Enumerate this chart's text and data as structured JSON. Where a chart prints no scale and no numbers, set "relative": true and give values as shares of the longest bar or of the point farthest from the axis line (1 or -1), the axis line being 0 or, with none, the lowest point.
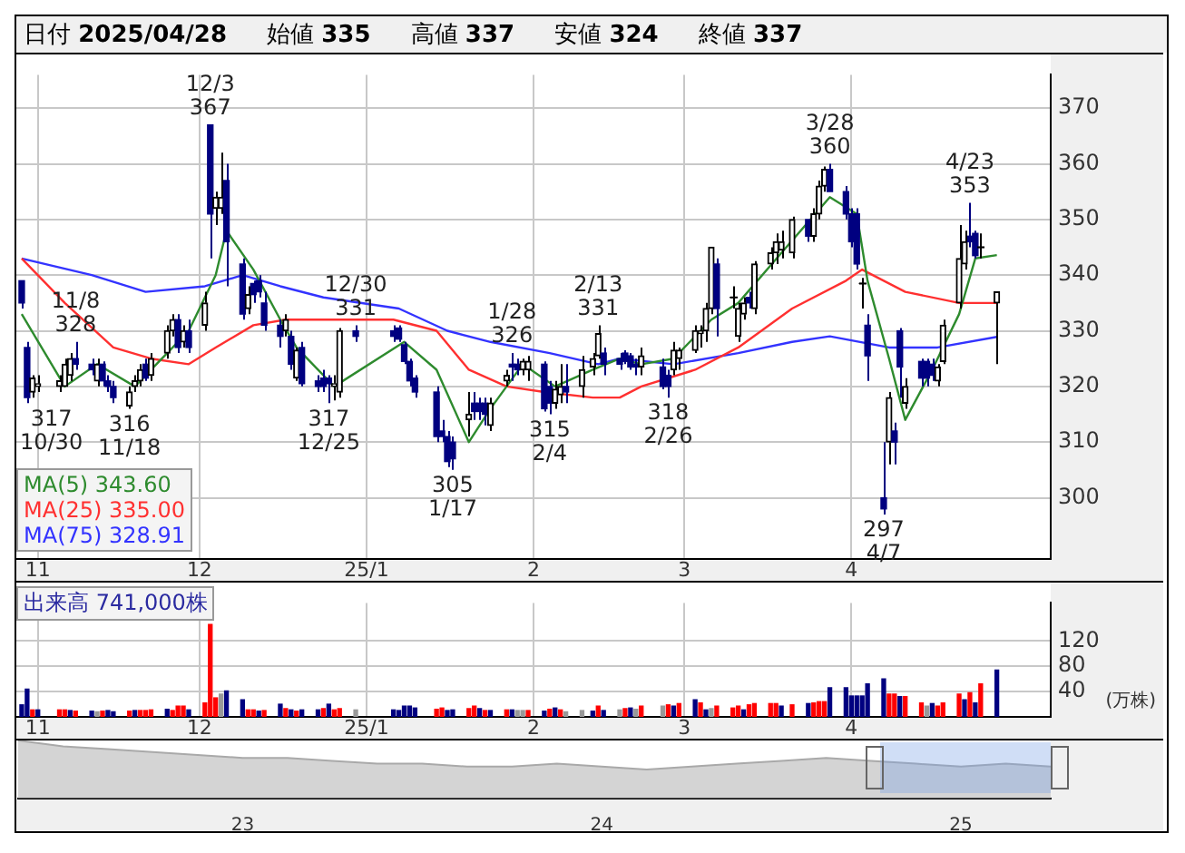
{
  "chart_data": [
    {
      "type": "candlestick",
      "grid": true,
      "legend": "bottom left",
      "colors": [
        "#000080",
        "#000080",
        "#000000",
        "#000000",
        "#000000",
        "#000000",
        "#000000",
        "#000080",
        "#000080",
        "#000000",
        "#000080",
        "#000080",
        "#000080",
        "#000000",
        "#000000",
        "#000000",
        "#000080",
        "#000000",
        "#000000",
        "#000000",
        "#000080",
        "#000000",
        "#000080",
        "#000000",
        "#000080",
        "#000000",
        "#000000",
        "#000080",
        "#000080",
        "#000000",
        "#000080",
        "#000080",
        "#000080",
        "#000080",
        "#000000",
        "#000080",
        "#000000",
        "#000080",
        "#000080",
        "#000080",
        "#000080",
        "#000000",
        "#000000",
        "#000080",
        "#000080",
        "#000080",
        "#000080",
        "#000080",
        "#000080",
        "#000080",
        "#000080",
        "#000080",
        "#000080",
        "#000000",
        "#000080",
        "#000080",
        "#000080",
        "#000000",
        "#000000",
        "#000080",
        "#000080",
        "#000000",
        "#000000",
        "#000080",
        "#000080",
        "#000000",
        "#000000",
        "#000080",
        "#000000",
        "#000000",
        "#000000",
        "#000080",
        "#000080",
        "#000080",
        "#000080",
        "#000080",
        "#000000",
        "#000080",
        "#000080",
        "#000000",
        "#000000",
        "#000000",
        "#000000",
        "#000000",
        "#000000",
        "#000080",
        "#000000",
        "#000000",
        "#000000",
        "#000080",
        "#000000",
        "#000000",
        "#000000",
        "#000000",
        "#000000",
        "#000080",
        "#000000",
        "#000000",
        "#000000",
        "#000080",
        "#000080",
        "#000080",
        "#000080",
        "#000000",
        "#000080",
        "#000080",
        "#000000",
        "#000080",
        "#000080",
        "#000000",
        "#000080",
        "#000080",
        "#000080",
        "#000000",
        "#000000",
        "#000000",
        "#000000",
        "#000080",
        "#000080",
        "#000000",
        "#000000"
      ],
      "annotations": [
        "日付 2025/04/28",
        "始値 335",
        "高値 337",
        "安値 324",
        "終値 337",
        {
          "text": "12/3\n367",
          "x": "2024-12-03",
          "y": 367
        },
        {
          "text": "11/8\n328",
          "x": "2024-11-08",
          "y": 328
        },
        {
          "text": "317\n10/30",
          "x": "2024-10-30",
          "y": 317
        },
        {
          "text": "316\n11/18",
          "x": "2024-11-18",
          "y": 316
        },
        {
          "text": "12/30\n331",
          "x": "2024-12-30",
          "y": 331
        },
        {
          "text": "317\n12/25",
          "x": "2024-12-25",
          "y": 317
        },
        {
          "text": "305\n1/17",
          "x": "2025-01-17",
          "y": 305
        },
        {
          "text": "1/28\n326",
          "x": "2025-01-28",
          "y": 326
        },
        {
          "text": "315\n2/4",
          "x": "2025-02-04",
          "y": 315
        },
        {
          "text": "2/13\n331",
          "x": "2025-02-13",
          "y": 331
        },
        {
          "text": "318\n2/26",
          "x": "2025-02-26",
          "y": 318
        },
        {
          "text": "3/28\n360",
          "x": "2025-03-28",
          "y": 360
        },
        {
          "text": "297\n4/7",
          "x": "2025-04-07",
          "y": 297
        },
        {
          "text": "4/23\n353",
          "x": "2025-04-23",
          "y": 353
        }
      ],
      "xlim": [
        "2024-10-28",
        "2025-05-08"
      ],
      "x": [
        "2024-10-29",
        "2024-10-30",
        "2024-10-31",
        "2024-11-01",
        "2024-11-05",
        "2024-11-06",
        "2024-11-07",
        "2024-11-08",
        "2024-11-11",
        "2024-11-12",
        "2024-11-13",
        "2024-11-14",
        "2024-11-15",
        "2024-11-18",
        "2024-11-19",
        "2024-11-20",
        "2024-11-21",
        "2024-11-22",
        "2024-11-25",
        "2024-11-26",
        "2024-11-27",
        "2024-11-28",
        "2024-11-29",
        "2024-12-02",
        "2024-12-03",
        "2024-12-04",
        "2024-12-05",
        "2024-12-06",
        "2024-12-09",
        "2024-12-10",
        "2024-12-11",
        "2024-12-12",
        "2024-12-13",
        "2024-12-16",
        "2024-12-17",
        "2024-12-18",
        "2024-12-19",
        "2024-12-20",
        "2024-12-23",
        "2024-12-24",
        "2024-12-25",
        "2024-12-26",
        "2024-12-27",
        "2024-12-30",
        "2025-01-06",
        "2025-01-07",
        "2025-01-08",
        "2025-01-09",
        "2025-01-10",
        "2025-01-14",
        "2025-01-15",
        "2025-01-16",
        "2025-01-17",
        "2025-01-20",
        "2025-01-21",
        "2025-01-22",
        "2025-01-23",
        "2025-01-24",
        "2025-01-27",
        "2025-01-28",
        "2025-01-29",
        "2025-01-30",
        "2025-01-31",
        "2025-02-03",
        "2025-02-04",
        "2025-02-05",
        "2025-02-06",
        "2025-02-07",
        "2025-02-10",
        "2025-02-12",
        "2025-02-13",
        "2025-02-14",
        "2025-02-17",
        "2025-02-18",
        "2025-02-19",
        "2025-02-20",
        "2025-02-21",
        "2025-02-25",
        "2025-02-26",
        "2025-02-27",
        "2025-02-28",
        "2025-03-03",
        "2025-03-04",
        "2025-03-05",
        "2025-03-06",
        "2025-03-07",
        "2025-03-10",
        "2025-03-11",
        "2025-03-12",
        "2025-03-13",
        "2025-03-14",
        "2025-03-17",
        "2025-03-18",
        "2025-03-19",
        "2025-03-21",
        "2025-03-24",
        "2025-03-25",
        "2025-03-26",
        "2025-03-27",
        "2025-03-28",
        "2025-03-31",
        "2025-04-01",
        "2025-04-02",
        "2025-04-03",
        "2025-04-04",
        "2025-04-07",
        "2025-04-08",
        "2025-04-09",
        "2025-04-10",
        "2025-04-11",
        "2025-04-14",
        "2025-04-15",
        "2025-04-16",
        "2025-04-17",
        "2025-04-18",
        "2025-04-21",
        "2025-04-22",
        "2025-04-23",
        "2025-04-24",
        "2025-04-25",
        "2025-04-28"
      ],
      "ohlc": [
        [
          339,
          339,
          334,
          335
        ],
        [
          327,
          328,
          317,
          318
        ],
        [
          319,
          322,
          318,
          321.5
        ],
        [
          320,
          322,
          319,
          320.5
        ],
        [
          320,
          322,
          319,
          321
        ],
        [
          320,
          325,
          320,
          324
        ],
        [
          322,
          326,
          321,
          325
        ],
        [
          325,
          328,
          323,
          324
        ],
        [
          324,
          325,
          322,
          323
        ],
        [
          321,
          325,
          320,
          324
        ],
        [
          324,
          324.5,
          320,
          321
        ],
        [
          321,
          322,
          319,
          320
        ],
        [
          320,
          321,
          317,
          318
        ],
        [
          316.5,
          320,
          316,
          319
        ],
        [
          320,
          322,
          319,
          321
        ],
        [
          321,
          324,
          320,
          323
        ],
        [
          324,
          325,
          321,
          321.5
        ],
        [
          322,
          326,
          321,
          325
        ],
        [
          326,
          331,
          325,
          330
        ],
        [
          330,
          333,
          329,
          332
        ],
        [
          332,
          333,
          326,
          327
        ],
        [
          328,
          331,
          327,
          330
        ],
        [
          330,
          332,
          326,
          327
        ],
        [
          331,
          337,
          330,
          335
        ],
        [
          367,
          367,
          343,
          351
        ],
        [
          352,
          355,
          349,
          354
        ],
        [
          352,
          362,
          351,
          354
        ],
        [
          357,
          360,
          338,
          346
        ],
        [
          342,
          343,
          332,
          333
        ],
        [
          334,
          338,
          333,
          336.5
        ],
        [
          338.5,
          339,
          335,
          336.5
        ],
        [
          339,
          340,
          336,
          337
        ],
        [
          335,
          337,
          330,
          331
        ],
        [
          331,
          332,
          327,
          329
        ],
        [
          330,
          333,
          329,
          332
        ],
        [
          329,
          330,
          323,
          324
        ],
        [
          321.5,
          327,
          321,
          326.5
        ],
        [
          327,
          328,
          320,
          320.5
        ],
        [
          321,
          322,
          319,
          320
        ],
        [
          321.5,
          323,
          319,
          320
        ],
        [
          321.5,
          322,
          317,
          320.5
        ],
        [
          320,
          322,
          317.5,
          320.5
        ],
        [
          319,
          330.5,
          318,
          330
        ],
        [
          330,
          331,
          328,
          329
        ],
        [
          330,
          331,
          328,
          329
        ],
        [
          330.5,
          331,
          328,
          328.5
        ],
        [
          327.5,
          328,
          324,
          324.5
        ],
        [
          324.5,
          325,
          320,
          321
        ],
        [
          321.5,
          322,
          318,
          319
        ],
        [
          319,
          320,
          310,
          311
        ],
        [
          312,
          314,
          310,
          311
        ],
        [
          311,
          312,
          305.5,
          306.5
        ],
        [
          310,
          311,
          305,
          307
        ],
        [
          314,
          319,
          311,
          315
        ],
        [
          317,
          319,
          314,
          315.5
        ],
        [
          317,
          318,
          314,
          315.5
        ],
        [
          317,
          318,
          313,
          315
        ],
        [
          313,
          318,
          312,
          317
        ],
        [
          321,
          323,
          320,
          322
        ],
        [
          324,
          326,
          321,
          323.5
        ],
        [
          324,
          325,
          322,
          323
        ],
        [
          323,
          325,
          322,
          324.5
        ],
        [
          323,
          325.5,
          321,
          324.5
        ],
        [
          324,
          324.5,
          315.5,
          316
        ],
        [
          320,
          321,
          315,
          317
        ],
        [
          317,
          321,
          316,
          319.5
        ],
        [
          318.5,
          324,
          317,
          320
        ],
        [
          320,
          324,
          317,
          319
        ],
        [
          320,
          325.5,
          318,
          323
        ],
        [
          323.5,
          326,
          322,
          325
        ],
        [
          325.5,
          331,
          325,
          329.5
        ],
        [
          326,
          327,
          322,
          324
        ],
        [
          325,
          326,
          323,
          324
        ],
        [
          326,
          326.5,
          324,
          324.5
        ],
        [
          325.5,
          326,
          323,
          323.5
        ],
        [
          324,
          325,
          322,
          323.5
        ],
        [
          323.5,
          327,
          322,
          325.5
        ],
        [
          323.5,
          325,
          319.5,
          320
        ],
        [
          322,
          323,
          318,
          320
        ],
        [
          323,
          328,
          322,
          326.5
        ],
        [
          325,
          327,
          323,
          326.5
        ],
        [
          326.5,
          331,
          326,
          330
        ],
        [
          329.5,
          331,
          327,
          330
        ],
        [
          330,
          335,
          328,
          334
        ],
        [
          334,
          345,
          333,
          345
        ],
        [
          342,
          343,
          329,
          334
        ],
        [
          336,
          338,
          334,
          336
        ],
        [
          329,
          335,
          328,
          334
        ],
        [
          333,
          336,
          332,
          335
        ],
        [
          336,
          337,
          334,
          335
        ],
        [
          334,
          342.5,
          333,
          342
        ],
        [
          342,
          345,
          341,
          344
        ],
        [
          344,
          347.5,
          342,
          346
        ],
        [
          344.5,
          348,
          343,
          346
        ],
        [
          344,
          350.5,
          343,
          350
        ],
        [
          350,
          350,
          346,
          347
        ],
        [
          347,
          352,
          346,
          351
        ],
        [
          351,
          357,
          350,
          356
        ],
        [
          356,
          359.5,
          355,
          359
        ],
        [
          359,
          360,
          355,
          355
        ],
        [
          355,
          356,
          350,
          351
        ],
        [
          351,
          352,
          345,
          346
        ],
        [
          351,
          352,
          341,
          342
        ],
        [
          338.5,
          339.5,
          334,
          338.5
        ],
        [
          331,
          333,
          321,
          325.5
        ],
        [
          300,
          310,
          297,
          298
        ],
        [
          310,
          319,
          306,
          318
        ],
        [
          312,
          313.5,
          306,
          310
        ],
        [
          330,
          330.5,
          318,
          323.5
        ],
        [
          317,
          321.5,
          316,
          320
        ],
        [
          324.5,
          325,
          320,
          321.5
        ],
        [
          324.5,
          325,
          320,
          321.5
        ],
        [
          324,
          325,
          321,
          322
        ],
        [
          321,
          324,
          320,
          323.5
        ],
        [
          324.5,
          332,
          324,
          331
        ],
        [
          335,
          349,
          334,
          343
        ],
        [
          342,
          348,
          341,
          346
        ],
        [
          347,
          353,
          345,
          346
        ],
        [
          347.5,
          348,
          343,
          343.5
        ],
        [
          345,
          347.5,
          343,
          345
        ],
        [
          335,
          337,
          324,
          337
        ]
      ],
      "series": [
        {
          "name": "MA(5) 343.60",
          "type": "line",
          "color": "#2e8b2e",
          "x": [
            "2024-10-29",
            "2024-11-06",
            "2024-11-12",
            "2024-11-19",
            "2024-11-25",
            "2024-11-29",
            "2024-12-04",
            "2024-12-06",
            "2024-12-11",
            "2024-12-16",
            "2024-12-19",
            "2024-12-26",
            "2025-01-08",
            "2025-01-14",
            "2025-01-20",
            "2025-01-24",
            "2025-01-30",
            "2025-02-05",
            "2025-02-12",
            "2025-02-17",
            "2025-02-21",
            "2025-02-27",
            "2025-03-06",
            "2025-03-11",
            "2025-03-19",
            "2025-03-28",
            "2025-04-02",
            "2025-04-04",
            "2025-04-08",
            "2025-04-11",
            "2025-04-16",
            "2025-04-21",
            "2025-04-24",
            "2025-04-28"
          ],
          "values": [
            333,
            320,
            324,
            320,
            326,
            330,
            340,
            348,
            341,
            332,
            327,
            320,
            328,
            323,
            310,
            316,
            324,
            320,
            323,
            325,
            324,
            325,
            332,
            335,
            344,
            354,
            351,
            339,
            325,
            314,
            323,
            333,
            343,
            343.6
          ]
        },
        {
          "name": "MA(25) 335.00",
          "type": "line",
          "color": "#ff3030",
          "x": [
            "2024-10-29",
            "2024-11-06",
            "2024-11-15",
            "2024-11-22",
            "2024-11-29",
            "2024-12-04",
            "2024-12-11",
            "2024-12-17",
            "2024-12-24",
            "2025-01-06",
            "2025-01-14",
            "2025-01-20",
            "2025-01-27",
            "2025-02-03",
            "2025-02-12",
            "2025-02-17",
            "2025-02-21",
            "2025-03-03",
            "2025-03-11",
            "2025-03-21",
            "2025-03-31",
            "2025-04-03",
            "2025-04-11",
            "2025-04-21",
            "2025-04-28"
          ],
          "values": [
            343,
            335,
            327,
            325,
            324,
            327,
            331,
            332,
            332,
            332,
            330,
            323,
            320,
            319,
            318,
            318,
            320,
            323,
            327,
            334,
            339,
            341,
            337,
            335,
            335
          ]
        },
        {
          "name": "MA(75) 328.91",
          "type": "line",
          "color": "#3333ff",
          "x": [
            "2024-10-29",
            "2024-11-11",
            "2024-11-21",
            "2024-12-02",
            "2024-12-09",
            "2024-12-16",
            "2024-12-24",
            "2025-01-07",
            "2025-01-16",
            "2025-01-24",
            "2025-02-04",
            "2025-02-13",
            "2025-02-17",
            "2025-02-27",
            "2025-03-11",
            "2025-03-21",
            "2025-03-28",
            "2025-04-08",
            "2025-04-17",
            "2025-04-28"
          ],
          "values": [
            343,
            340,
            337,
            338,
            340,
            338,
            336,
            334,
            330,
            328,
            326,
            324,
            325,
            324,
            326,
            328,
            329,
            327,
            327,
            328.9
          ]
        }
      ],
      "xticks": [
        {
          "value": "2024-11-01",
          "label": "11"
        },
        {
          "value": "2024-12-01",
          "label": "12"
        },
        {
          "value": "2025-01-01",
          "label": "25/1"
        },
        {
          "value": "2025-02-01",
          "label": "2"
        },
        {
          "value": "2025-03-01",
          "label": "3"
        },
        {
          "value": "2025-04-01",
          "label": "4"
        }
      ],
      "ylim": [
        289,
        376
      ],
      "yticks": [
        300,
        310,
        320,
        330,
        340,
        350,
        360,
        370
      ]
    },
    {
      "type": "bar",
      "title": "出来高 741,000株",
      "ylabel": "(万株)",
      "grid": true,
      "x": [
        "2024-10-29",
        "2024-10-30",
        "2024-10-31",
        "2024-11-01",
        "2024-11-05",
        "2024-11-06",
        "2024-11-07",
        "2024-11-08",
        "2024-11-11",
        "2024-11-12",
        "2024-11-13",
        "2024-11-14",
        "2024-11-15",
        "2024-11-18",
        "2024-11-19",
        "2024-11-20",
        "2024-11-21",
        "2024-11-22",
        "2024-11-25",
        "2024-11-26",
        "2024-11-27",
        "2024-11-28",
        "2024-11-29",
        "2024-12-02",
        "2024-12-03",
        "2024-12-04",
        "2024-12-05",
        "2024-12-06",
        "2024-12-09",
        "2024-12-10",
        "2024-12-11",
        "2024-12-12",
        "2024-12-13",
        "2024-12-16",
        "2024-12-17",
        "2024-12-18",
        "2024-12-19",
        "2024-12-20",
        "2024-12-23",
        "2024-12-24",
        "2024-12-25",
        "2024-12-26",
        "2024-12-27",
        "2024-12-30",
        "2025-01-06",
        "2025-01-07",
        "2025-01-08",
        "2025-01-09",
        "2025-01-10",
        "2025-01-14",
        "2025-01-15",
        "2025-01-16",
        "2025-01-17",
        "2025-01-20",
        "2025-01-21",
        "2025-01-22",
        "2025-01-23",
        "2025-01-24",
        "2025-01-27",
        "2025-01-28",
        "2025-01-29",
        "2025-01-30",
        "2025-01-31",
        "2025-02-03",
        "2025-02-04",
        "2025-02-05",
        "2025-02-06",
        "2025-02-07",
        "2025-02-10",
        "2025-02-12",
        "2025-02-13",
        "2025-02-14",
        "2025-02-17",
        "2025-02-18",
        "2025-02-19",
        "2025-02-20",
        "2025-02-21",
        "2025-02-25",
        "2025-02-26",
        "2025-02-27",
        "2025-02-28",
        "2025-03-03",
        "2025-03-04",
        "2025-03-05",
        "2025-03-06",
        "2025-03-07",
        "2025-03-10",
        "2025-03-11",
        "2025-03-12",
        "2025-03-13",
        "2025-03-14",
        "2025-03-17",
        "2025-03-18",
        "2025-03-19",
        "2025-03-21",
        "2025-03-24",
        "2025-03-25",
        "2025-03-26",
        "2025-03-27",
        "2025-03-28",
        "2025-03-31",
        "2025-04-01",
        "2025-04-02",
        "2025-04-03",
        "2025-04-04",
        "2025-04-07",
        "2025-04-08",
        "2025-04-09",
        "2025-04-10",
        "2025-04-11",
        "2025-04-14",
        "2025-04-15",
        "2025-04-16",
        "2025-04-17",
        "2025-04-18",
        "2025-04-21",
        "2025-04-22",
        "2025-04-23",
        "2025-04-24",
        "2025-04-25",
        "2025-04-28"
      ],
      "values": [
        19,
        44,
        11,
        11,
        11,
        11,
        10,
        9,
        9,
        8,
        9,
        10,
        8,
        9,
        10,
        10,
        10,
        11,
        12,
        10,
        17,
        17,
        11,
        22,
        146,
        30,
        36,
        41,
        27,
        11,
        11,
        9,
        10,
        20,
        13,
        11,
        9,
        11,
        11,
        13,
        20,
        11,
        13,
        11,
        11,
        10,
        17,
        17,
        14,
        12,
        14,
        10,
        11,
        13,
        17,
        13,
        10,
        10,
        11,
        11,
        10,
        10,
        10,
        9,
        12,
        14,
        11,
        8,
        10,
        9,
        17,
        10,
        11,
        13,
        14,
        12,
        17,
        17,
        19,
        17,
        21,
        27,
        22,
        11,
        13,
        17,
        14,
        17,
        11,
        19,
        21,
        21,
        21,
        17,
        19,
        21,
        22,
        24,
        24,
        46,
        46,
        33,
        33,
        33,
        52,
        60,
        36,
        36,
        32,
        32,
        22,
        17,
        21,
        17,
        22,
        36,
        27,
        38,
        22,
        52,
        74
      ],
      "colors": [
        "#000080",
        "#000080",
        "#ff0000",
        "#000080",
        "#ff0000",
        "#ff0000",
        "#000080",
        "#ff0000",
        "#000080",
        "#999999",
        "#ff0000",
        "#000080",
        "#000080",
        "#ff0000",
        "#000080",
        "#ff0000",
        "#ff0000",
        "#ff0000",
        "#000080",
        "#ff0000",
        "#ff0000",
        "#ff0000",
        "#000080",
        "#ff0000",
        "#ff0000",
        "#ff0000",
        "#999999",
        "#000080",
        "#000080",
        "#ff0000",
        "#ff0000",
        "#000080",
        "#ff0000",
        "#000080",
        "#ff0000",
        "#000080",
        "#ff0000",
        "#000080",
        "#000080",
        "#ff0000",
        "#000080",
        "#ff0000",
        "#ff0000",
        "#999999",
        "#000080",
        "#000080",
        "#000080",
        "#000080",
        "#000080",
        "#ff0000",
        "#ff0000",
        "#000080",
        "#000080",
        "#ff0000",
        "#ff0000",
        "#000080",
        "#ff0000",
        "#000080",
        "#ff0000",
        "#000080",
        "#999999",
        "#999999",
        "#ff0000",
        "#000080",
        "#ff0000",
        "#000080",
        "#ff0000",
        "#999999",
        "#999999",
        "#000080",
        "#ff0000",
        "#000080",
        "#999999",
        "#ff0000",
        "#000080",
        "#999999",
        "#ff0000",
        "#999999",
        "#ff0000",
        "#000080",
        "#ff0000",
        "#000080",
        "#ff0000",
        "#000080",
        "#999999",
        "#ff0000",
        "#ff0000",
        "#ff0000",
        "#000080",
        "#ff0000",
        "#ff0000",
        "#ff0000",
        "#ff0000",
        "#000080",
        "#ff0000",
        "#000080",
        "#ff0000",
        "#ff0000",
        "#ff0000",
        "#000080",
        "#000080",
        "#000080",
        "#000080",
        "#000080",
        "#000080",
        "#000080",
        "#ff0000",
        "#ff0000",
        "#000080",
        "#ff0000",
        "#ff0000",
        "#999999",
        "#000080",
        "#ff0000",
        "#ff0000",
        "#ff0000",
        "#000080",
        "#ff0000",
        "#000080",
        "#ff0000",
        "#000080"
      ],
      "xticks": [
        {
          "value": "2024-11-01",
          "label": "11"
        },
        {
          "value": "2024-12-01",
          "label": "12"
        },
        {
          "value": "2025-01-01",
          "label": "25/1"
        },
        {
          "value": "2025-02-01",
          "label": "2"
        },
        {
          "value": "2025-03-01",
          "label": "3"
        },
        {
          "value": "2025-04-01",
          "label": "4"
        }
      ],
      "ylim": [
        0,
        180
      ],
      "yticks": [
        40,
        80,
        120
      ],
      "xlim": [
        "2024-10-28",
        "2025-05-08"
      ]
    },
    {
      "type": "area",
      "relative": true,
      "color": "#a9a9a9",
      "categories": [
        null,
        null,
        null,
        null,
        null,
        "23",
        null,
        null,
        null,
        null,
        null,
        null,
        null,
        "24",
        null,
        null,
        null,
        null,
        null,
        null,
        null,
        "25",
        null,
        null
      ],
      "values": [
        1,
        0.9,
        0.85,
        0.8,
        0.75,
        0.7,
        0.7,
        0.65,
        0.6,
        0.6,
        0.55,
        0.55,
        0.6,
        0.55,
        0.5,
        0.55,
        0.6,
        0.65,
        0.7,
        0.65,
        0.6,
        0.55,
        0.6,
        0.55
      ]
    }
  ]
}
